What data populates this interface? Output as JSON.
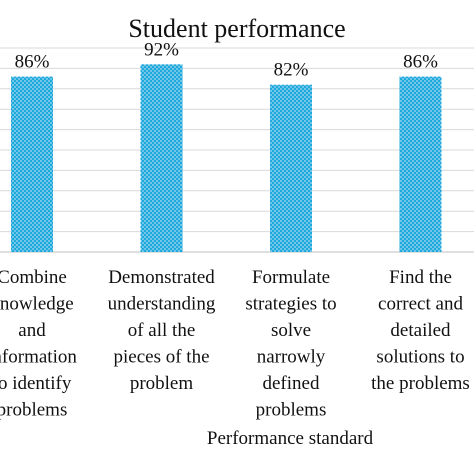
{
  "chart_data": {
    "type": "bar",
    "title": "Student performance",
    "xlabel": "Performance standard",
    "ylabel": "",
    "categories": [
      "Combine knowledge and information to identify problems",
      "Demonstrated understanding of all the pieces of the problem",
      "Formulate strategies to solve narrowly defined problems",
      "Find the correct and detailed solutions to the problems"
    ],
    "category_lines": [
      [
        "Combine",
        "knowledge",
        "and",
        "information",
        "to identify",
        "problems"
      ],
      [
        "Demonstrated",
        "understanding",
        "of all the",
        "pieces of the",
        "problem"
      ],
      [
        "Formulate",
        "strategies to",
        "solve",
        "narrowly",
        "defined",
        "problems"
      ],
      [
        "Find the",
        "correct and",
        "detailed",
        "solutions to",
        "the problems"
      ]
    ],
    "values": [
      86,
      92,
      82,
      86
    ],
    "value_labels": [
      "86%",
      "92%",
      "82%",
      "86%"
    ],
    "ylim": [
      0,
      100
    ],
    "grid": true,
    "bar_color": "#1fa8dc",
    "pattern": "dotted"
  }
}
